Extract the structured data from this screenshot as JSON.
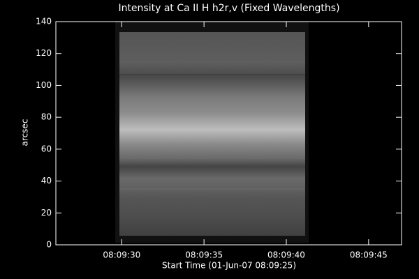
{
  "chart_data": {
    "type": "image",
    "title": "Intensity at Ca II H h2r,v (Fixed Wavelengths)",
    "x_label": "Start Time (01-Jun-07 08:09:25)",
    "y_label": "arcsec",
    "xlim": [
      "08:09:26",
      "08:09:47"
    ],
    "xticks": [
      "08:09:30",
      "08:09:35",
      "08:09:40",
      "08:09:45"
    ],
    "ylim": [
      0,
      140
    ],
    "yticks": [
      0,
      20,
      40,
      60,
      80,
      100,
      120,
      140
    ]
  }
}
